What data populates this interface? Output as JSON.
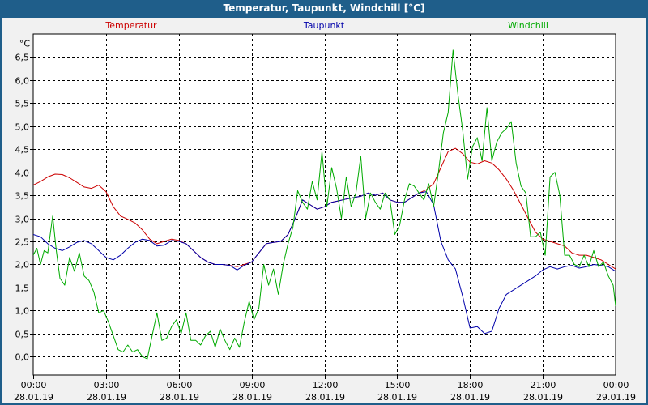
{
  "window": {
    "title": "Temperatur, Taupunkt, Windchill [°C]"
  },
  "chart_data": {
    "type": "line",
    "title": "Temperatur, Taupunkt, Windchill [°C]",
    "ylabel": "°C",
    "ylim": [
      -0.4,
      7.0
    ],
    "y_ticks": [
      "0,0",
      "0,5",
      "1,0",
      "1,5",
      "2,0",
      "2,5",
      "3,0",
      "3,5",
      "4,0",
      "4,5",
      "5,0",
      "5,5",
      "6,0",
      "6,5"
    ],
    "x_range_hours": [
      0,
      24
    ],
    "x_ticks": [
      {
        "hour": 0,
        "time": "00:00",
        "date": "28.01.19"
      },
      {
        "hour": 3,
        "time": "03:00",
        "date": "28.01.19"
      },
      {
        "hour": 6,
        "time": "06:00",
        "date": "28.01.19"
      },
      {
        "hour": 9,
        "time": "09:00",
        "date": "28.01.19"
      },
      {
        "hour": 12,
        "time": "12:00",
        "date": "28.01.19"
      },
      {
        "hour": 15,
        "time": "15:00",
        "date": "28.01.19"
      },
      {
        "hour": 18,
        "time": "18:00",
        "date": "28.01.19"
      },
      {
        "hour": 21,
        "time": "21:00",
        "date": "28.01.19"
      },
      {
        "hour": 24,
        "time": "00:00",
        "date": "29.01.19"
      }
    ],
    "grid": true,
    "series": [
      {
        "name": "Temperatur",
        "color": "#cc0000",
        "points": [
          [
            0,
            3.72
          ],
          [
            0.3,
            3.8
          ],
          [
            0.6,
            3.9
          ],
          [
            0.9,
            3.96
          ],
          [
            1.2,
            3.95
          ],
          [
            1.5,
            3.88
          ],
          [
            1.8,
            3.78
          ],
          [
            2.1,
            3.68
          ],
          [
            2.4,
            3.65
          ],
          [
            2.7,
            3.72
          ],
          [
            3.0,
            3.58
          ],
          [
            3.3,
            3.25
          ],
          [
            3.6,
            3.05
          ],
          [
            3.9,
            2.98
          ],
          [
            4.2,
            2.9
          ],
          [
            4.5,
            2.75
          ],
          [
            4.8,
            2.55
          ],
          [
            5.1,
            2.45
          ],
          [
            5.4,
            2.5
          ],
          [
            5.7,
            2.55
          ],
          [
            6.0,
            2.52
          ],
          [
            6.3,
            2.45
          ],
          [
            6.6,
            2.3
          ],
          [
            6.9,
            2.15
          ],
          [
            7.2,
            2.05
          ],
          [
            7.5,
            2.0
          ],
          [
            7.8,
            2.0
          ],
          [
            8.1,
            1.98
          ],
          [
            8.4,
            1.95
          ],
          [
            8.7,
            2.0
          ],
          [
            9.0,
            2.05
          ],
          [
            9.3,
            2.25
          ],
          [
            9.6,
            2.45
          ],
          [
            9.9,
            2.48
          ],
          [
            10.2,
            2.5
          ],
          [
            10.5,
            2.65
          ],
          [
            10.8,
            3.0
          ],
          [
            11.1,
            3.4
          ],
          [
            11.4,
            3.3
          ],
          [
            11.7,
            3.2
          ],
          [
            12.0,
            3.25
          ],
          [
            12.3,
            3.35
          ],
          [
            12.6,
            3.38
          ],
          [
            12.9,
            3.42
          ],
          [
            13.2,
            3.45
          ],
          [
            13.5,
            3.48
          ],
          [
            13.8,
            3.55
          ],
          [
            14.1,
            3.5
          ],
          [
            14.4,
            3.55
          ],
          [
            14.7,
            3.4
          ],
          [
            15.0,
            3.35
          ],
          [
            15.3,
            3.35
          ],
          [
            15.6,
            3.45
          ],
          [
            15.9,
            3.55
          ],
          [
            16.2,
            3.62
          ],
          [
            16.5,
            3.75
          ],
          [
            16.8,
            4.1
          ],
          [
            17.1,
            4.45
          ],
          [
            17.4,
            4.52
          ],
          [
            17.7,
            4.4
          ],
          [
            18.0,
            4.22
          ],
          [
            18.3,
            4.18
          ],
          [
            18.6,
            4.25
          ],
          [
            18.9,
            4.2
          ],
          [
            19.2,
            4.05
          ],
          [
            19.5,
            3.85
          ],
          [
            19.8,
            3.6
          ],
          [
            20.1,
            3.3
          ],
          [
            20.4,
            3.0
          ],
          [
            20.7,
            2.7
          ],
          [
            21.0,
            2.55
          ],
          [
            21.3,
            2.5
          ],
          [
            21.6,
            2.45
          ],
          [
            21.9,
            2.4
          ],
          [
            22.2,
            2.25
          ],
          [
            22.5,
            2.2
          ],
          [
            22.8,
            2.2
          ],
          [
            23.1,
            2.15
          ],
          [
            23.4,
            2.1
          ],
          [
            23.7,
            2.0
          ],
          [
            24.0,
            1.9
          ]
        ]
      },
      {
        "name": "Taupunkt",
        "color": "#0000aa",
        "points": [
          [
            0,
            2.65
          ],
          [
            0.3,
            2.6
          ],
          [
            0.6,
            2.45
          ],
          [
            0.9,
            2.35
          ],
          [
            1.2,
            2.3
          ],
          [
            1.5,
            2.38
          ],
          [
            1.8,
            2.48
          ],
          [
            2.1,
            2.52
          ],
          [
            2.4,
            2.45
          ],
          [
            2.7,
            2.3
          ],
          [
            3.0,
            2.15
          ],
          [
            3.3,
            2.1
          ],
          [
            3.6,
            2.2
          ],
          [
            3.9,
            2.35
          ],
          [
            4.2,
            2.48
          ],
          [
            4.5,
            2.55
          ],
          [
            4.8,
            2.52
          ],
          [
            5.1,
            2.4
          ],
          [
            5.4,
            2.42
          ],
          [
            5.7,
            2.52
          ],
          [
            6.0,
            2.5
          ],
          [
            6.3,
            2.45
          ],
          [
            6.6,
            2.3
          ],
          [
            6.9,
            2.15
          ],
          [
            7.2,
            2.05
          ],
          [
            7.5,
            2.0
          ],
          [
            7.8,
            2.0
          ],
          [
            8.1,
            1.98
          ],
          [
            8.4,
            1.88
          ],
          [
            8.7,
            1.98
          ],
          [
            9.0,
            2.05
          ],
          [
            9.3,
            2.25
          ],
          [
            9.6,
            2.45
          ],
          [
            9.9,
            2.48
          ],
          [
            10.2,
            2.5
          ],
          [
            10.5,
            2.65
          ],
          [
            10.8,
            3.0
          ],
          [
            11.1,
            3.4
          ],
          [
            11.4,
            3.3
          ],
          [
            11.7,
            3.2
          ],
          [
            12.0,
            3.25
          ],
          [
            12.3,
            3.35
          ],
          [
            12.6,
            3.38
          ],
          [
            12.9,
            3.42
          ],
          [
            13.2,
            3.45
          ],
          [
            13.5,
            3.48
          ],
          [
            13.8,
            3.55
          ],
          [
            14.1,
            3.5
          ],
          [
            14.4,
            3.55
          ],
          [
            14.7,
            3.4
          ],
          [
            15.0,
            3.35
          ],
          [
            15.3,
            3.35
          ],
          [
            15.6,
            3.45
          ],
          [
            15.9,
            3.55
          ],
          [
            16.2,
            3.58
          ],
          [
            16.5,
            3.3
          ],
          [
            16.8,
            2.5
          ],
          [
            17.1,
            2.1
          ],
          [
            17.4,
            1.9
          ],
          [
            17.7,
            1.3
          ],
          [
            18.0,
            0.62
          ],
          [
            18.3,
            0.65
          ],
          [
            18.6,
            0.5
          ],
          [
            18.9,
            0.55
          ],
          [
            19.2,
            1.05
          ],
          [
            19.5,
            1.35
          ],
          [
            19.8,
            1.45
          ],
          [
            20.1,
            1.55
          ],
          [
            20.4,
            1.65
          ],
          [
            20.7,
            1.75
          ],
          [
            21.0,
            1.88
          ],
          [
            21.3,
            1.95
          ],
          [
            21.6,
            1.9
          ],
          [
            21.9,
            1.95
          ],
          [
            22.2,
            1.98
          ],
          [
            22.5,
            1.92
          ],
          [
            22.8,
            1.95
          ],
          [
            23.1,
            2.0
          ],
          [
            23.4,
            1.98
          ],
          [
            23.7,
            1.95
          ],
          [
            24.0,
            1.85
          ]
        ]
      },
      {
        "name": "Windchill",
        "color": "#00aa00",
        "points": [
          [
            0,
            2.2
          ],
          [
            0.15,
            2.35
          ],
          [
            0.3,
            2.0
          ],
          [
            0.45,
            2.3
          ],
          [
            0.6,
            2.25
          ],
          [
            0.8,
            3.05
          ],
          [
            0.95,
            2.3
          ],
          [
            1.1,
            1.7
          ],
          [
            1.3,
            1.55
          ],
          [
            1.5,
            2.15
          ],
          [
            1.7,
            1.85
          ],
          [
            1.9,
            2.25
          ],
          [
            2.1,
            1.75
          ],
          [
            2.3,
            1.65
          ],
          [
            2.5,
            1.4
          ],
          [
            2.7,
            0.95
          ],
          [
            2.9,
            1.0
          ],
          [
            3.1,
            0.75
          ],
          [
            3.3,
            0.45
          ],
          [
            3.5,
            0.15
          ],
          [
            3.7,
            0.1
          ],
          [
            3.9,
            0.25
          ],
          [
            4.1,
            0.1
          ],
          [
            4.3,
            0.15
          ],
          [
            4.5,
            0.0
          ],
          [
            4.7,
            -0.05
          ],
          [
            4.9,
            0.45
          ],
          [
            5.1,
            0.95
          ],
          [
            5.3,
            0.35
          ],
          [
            5.5,
            0.4
          ],
          [
            5.7,
            0.65
          ],
          [
            5.9,
            0.8
          ],
          [
            6.1,
            0.5
          ],
          [
            6.3,
            0.95
          ],
          [
            6.5,
            0.35
          ],
          [
            6.7,
            0.35
          ],
          [
            6.9,
            0.25
          ],
          [
            7.1,
            0.45
          ],
          [
            7.3,
            0.55
          ],
          [
            7.5,
            0.2
          ],
          [
            7.7,
            0.6
          ],
          [
            7.9,
            0.35
          ],
          [
            8.1,
            0.15
          ],
          [
            8.3,
            0.4
          ],
          [
            8.5,
            0.2
          ],
          [
            8.7,
            0.75
          ],
          [
            8.9,
            1.2
          ],
          [
            9.1,
            0.8
          ],
          [
            9.3,
            1.05
          ],
          [
            9.5,
            2.0
          ],
          [
            9.7,
            1.55
          ],
          [
            9.9,
            1.9
          ],
          [
            10.1,
            1.35
          ],
          [
            10.3,
            2.0
          ],
          [
            10.5,
            2.45
          ],
          [
            10.7,
            2.8
          ],
          [
            10.9,
            3.6
          ],
          [
            11.1,
            3.35
          ],
          [
            11.3,
            3.2
          ],
          [
            11.5,
            3.8
          ],
          [
            11.7,
            3.4
          ],
          [
            11.9,
            4.45
          ],
          [
            12.1,
            3.25
          ],
          [
            12.3,
            4.1
          ],
          [
            12.5,
            3.65
          ],
          [
            12.7,
            3.0
          ],
          [
            12.9,
            3.9
          ],
          [
            13.1,
            3.25
          ],
          [
            13.3,
            3.55
          ],
          [
            13.5,
            4.35
          ],
          [
            13.7,
            3.0
          ],
          [
            13.9,
            3.55
          ],
          [
            14.1,
            3.35
          ],
          [
            14.3,
            3.2
          ],
          [
            14.5,
            3.55
          ],
          [
            14.7,
            3.4
          ],
          [
            14.9,
            2.65
          ],
          [
            15.1,
            2.85
          ],
          [
            15.3,
            3.4
          ],
          [
            15.5,
            3.75
          ],
          [
            15.7,
            3.7
          ],
          [
            15.9,
            3.55
          ],
          [
            16.1,
            3.4
          ],
          [
            16.3,
            3.75
          ],
          [
            16.5,
            3.25
          ],
          [
            16.7,
            4.0
          ],
          [
            16.9,
            4.85
          ],
          [
            17.1,
            5.3
          ],
          [
            17.3,
            6.65
          ],
          [
            17.5,
            5.7
          ],
          [
            17.7,
            4.9
          ],
          [
            17.9,
            3.85
          ],
          [
            18.1,
            4.55
          ],
          [
            18.3,
            4.75
          ],
          [
            18.5,
            4.25
          ],
          [
            18.7,
            5.4
          ],
          [
            18.9,
            4.25
          ],
          [
            19.1,
            4.65
          ],
          [
            19.3,
            4.85
          ],
          [
            19.5,
            4.95
          ],
          [
            19.7,
            5.1
          ],
          [
            19.9,
            4.2
          ],
          [
            20.1,
            3.7
          ],
          [
            20.3,
            3.55
          ],
          [
            20.5,
            2.6
          ],
          [
            20.7,
            2.6
          ],
          [
            20.9,
            2.7
          ],
          [
            21.1,
            2.2
          ],
          [
            21.3,
            3.9
          ],
          [
            21.5,
            4.0
          ],
          [
            21.7,
            3.5
          ],
          [
            21.9,
            2.2
          ],
          [
            22.1,
            2.2
          ],
          [
            22.3,
            2.0
          ],
          [
            22.5,
            1.95
          ],
          [
            22.7,
            2.2
          ],
          [
            22.9,
            1.95
          ],
          [
            23.1,
            2.3
          ],
          [
            23.3,
            1.95
          ],
          [
            23.5,
            2.05
          ],
          [
            23.7,
            1.75
          ],
          [
            23.9,
            1.55
          ],
          [
            24.0,
            1.1
          ]
        ]
      }
    ]
  }
}
